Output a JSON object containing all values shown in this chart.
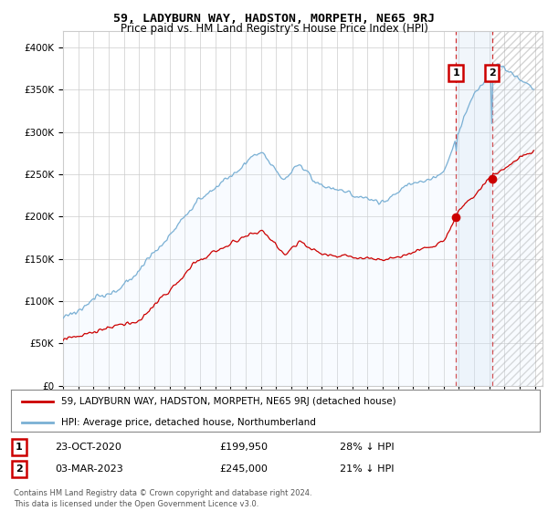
{
  "title": "59, LADYBURN WAY, HADSTON, MORPETH, NE65 9RJ",
  "subtitle": "Price paid vs. HM Land Registry's House Price Index (HPI)",
  "legend_line1": "59, LADYBURN WAY, HADSTON, MORPETH, NE65 9RJ (detached house)",
  "legend_line2": "HPI: Average price, detached house, Northumberland",
  "transaction1_date": "23-OCT-2020",
  "transaction1_price": "£199,950",
  "transaction1_hpi": "28% ↓ HPI",
  "transaction2_date": "03-MAR-2023",
  "transaction2_price": "£245,000",
  "transaction2_hpi": "21% ↓ HPI",
  "footer": "Contains HM Land Registry data © Crown copyright and database right 2024.\nThis data is licensed under the Open Government Licence v3.0.",
  "house_color": "#cc0000",
  "hpi_color": "#7ab0d4",
  "hpi_fill_color": "#ddeeff",
  "background_color": "#ffffff",
  "grid_color": "#cccccc",
  "ylim": [
    0,
    420000
  ],
  "xlim_start": 1995.0,
  "xlim_end": 2026.5,
  "transaction1_x": 2020.81,
  "transaction1_y": 199950,
  "transaction2_x": 2023.17,
  "transaction2_y": 245000
}
